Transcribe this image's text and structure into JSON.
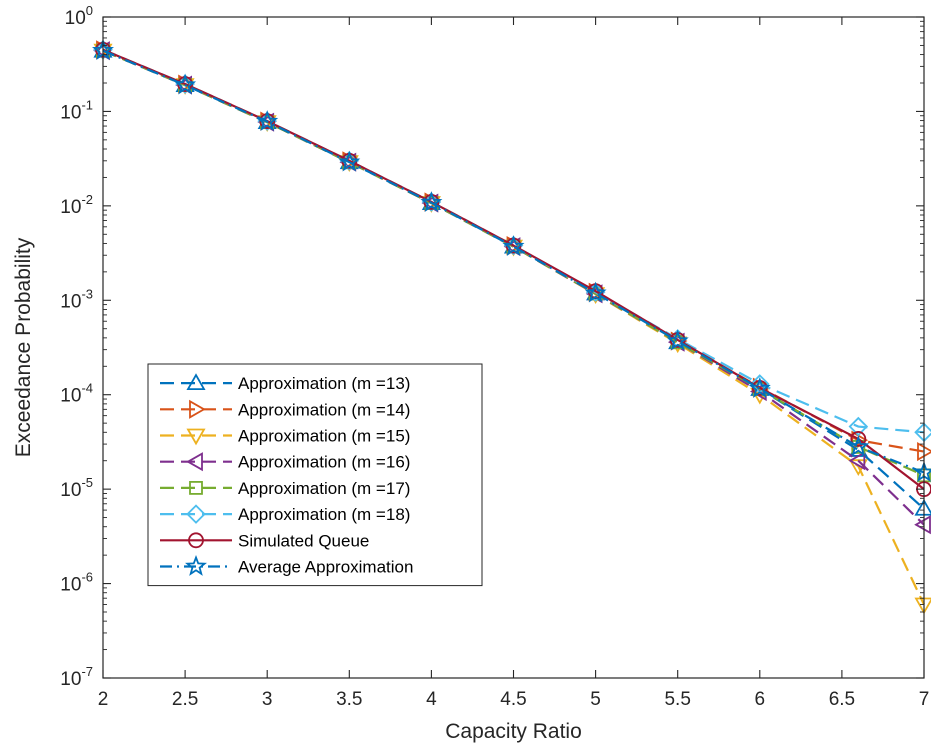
{
  "chart_data": {
    "type": "line",
    "xlabel": "Capacity Ratio",
    "ylabel": "Exceedance Probability",
    "xlim": [
      2,
      7
    ],
    "ylim": [
      1e-07,
      1
    ],
    "yscale": "log",
    "x_ticks": [
      {
        "v": 2,
        "label": "2"
      },
      {
        "v": 2.5,
        "label": "2.5"
      },
      {
        "v": 3,
        "label": "3"
      },
      {
        "v": 3.5,
        "label": "3.5"
      },
      {
        "v": 4,
        "label": "4"
      },
      {
        "v": 4.5,
        "label": "4.5"
      },
      {
        "v": 5,
        "label": "5"
      },
      {
        "v": 5.5,
        "label": "5.5"
      },
      {
        "v": 6,
        "label": "6"
      },
      {
        "v": 6.5,
        "label": "6.5"
      },
      {
        "v": 7,
        "label": "7"
      }
    ],
    "y_ticks": [
      {
        "exp": 0,
        "base": "10",
        "sup": "0"
      },
      {
        "exp": -1,
        "base": "10",
        "sup": "-1"
      },
      {
        "exp": -2,
        "base": "10",
        "sup": "-2"
      },
      {
        "exp": -3,
        "base": "10",
        "sup": "-3"
      },
      {
        "exp": -4,
        "base": "10",
        "sup": "-4"
      },
      {
        "exp": -5,
        "base": "10",
        "sup": "-5"
      },
      {
        "exp": -6,
        "base": "10",
        "sup": "-6"
      },
      {
        "exp": -7,
        "base": "10",
        "sup": "-7"
      }
    ],
    "grid": false,
    "legend_position": "bottom-left",
    "x": [
      2,
      2.5,
      3,
      3.5,
      4,
      4.5,
      5,
      5.5,
      6,
      6.6,
      7
    ],
    "series": [
      {
        "name": "Approximation (m =13)",
        "color": "#0072BD",
        "dash": "dashed",
        "marker": "triangle-up",
        "values": [
          0.44,
          0.19,
          0.077,
          0.029,
          0.0107,
          0.0037,
          0.00118,
          0.00036,
          0.000115,
          2.6e-05,
          6.2e-06
        ]
      },
      {
        "name": "Approximation (m =14)",
        "color": "#D95319",
        "dash": "dashed",
        "marker": "triangle-right",
        "values": [
          0.45,
          0.195,
          0.079,
          0.03,
          0.011,
          0.0038,
          0.00122,
          0.00037,
          0.00012,
          3.3e-05,
          2.5e-05
        ]
      },
      {
        "name": "Approximation (m =15)",
        "color": "#EDB120",
        "dash": "dashed",
        "marker": "triangle-down",
        "values": [
          0.44,
          0.19,
          0.077,
          0.029,
          0.0107,
          0.0037,
          0.00116,
          0.00035,
          0.0001,
          1.75e-05,
          6e-07
        ]
      },
      {
        "name": "Approximation (m =16)",
        "color": "#7E2F8E",
        "dash": "dashed",
        "marker": "triangle-left",
        "values": [
          0.44,
          0.19,
          0.077,
          0.029,
          0.0107,
          0.0037,
          0.00117,
          0.00036,
          0.000108,
          2e-05,
          4.2e-06
        ]
      },
      {
        "name": "Approximation (m =17)",
        "color": "#77AC30",
        "dash": "dashed",
        "marker": "square",
        "values": [
          0.44,
          0.19,
          0.077,
          0.029,
          0.0107,
          0.0037,
          0.00118,
          0.00036,
          0.000115,
          2.8e-05,
          1.4e-05
        ]
      },
      {
        "name": "Approximation (m =18)",
        "color": "#4DBEEE",
        "dash": "dashed",
        "marker": "diamond",
        "values": [
          0.45,
          0.195,
          0.079,
          0.03,
          0.011,
          0.0038,
          0.00122,
          0.00039,
          0.00013,
          4.6e-05,
          4e-05
        ]
      },
      {
        "name": "Simulated Queue",
        "color": "#A2142F",
        "dash": "solid",
        "marker": "circle",
        "values": [
          0.45,
          0.195,
          0.079,
          0.03,
          0.011,
          0.0038,
          0.00125,
          0.00038,
          0.000118,
          3.4e-05,
          1e-05
        ]
      },
      {
        "name": "Average Approximation",
        "color": "#0072BD",
        "dash": "dashdot",
        "marker": "star",
        "values": [
          0.44,
          0.19,
          0.078,
          0.029,
          0.0108,
          0.0037,
          0.00119,
          0.00037,
          0.000116,
          2.8e-05,
          1.5e-05
        ]
      }
    ]
  }
}
